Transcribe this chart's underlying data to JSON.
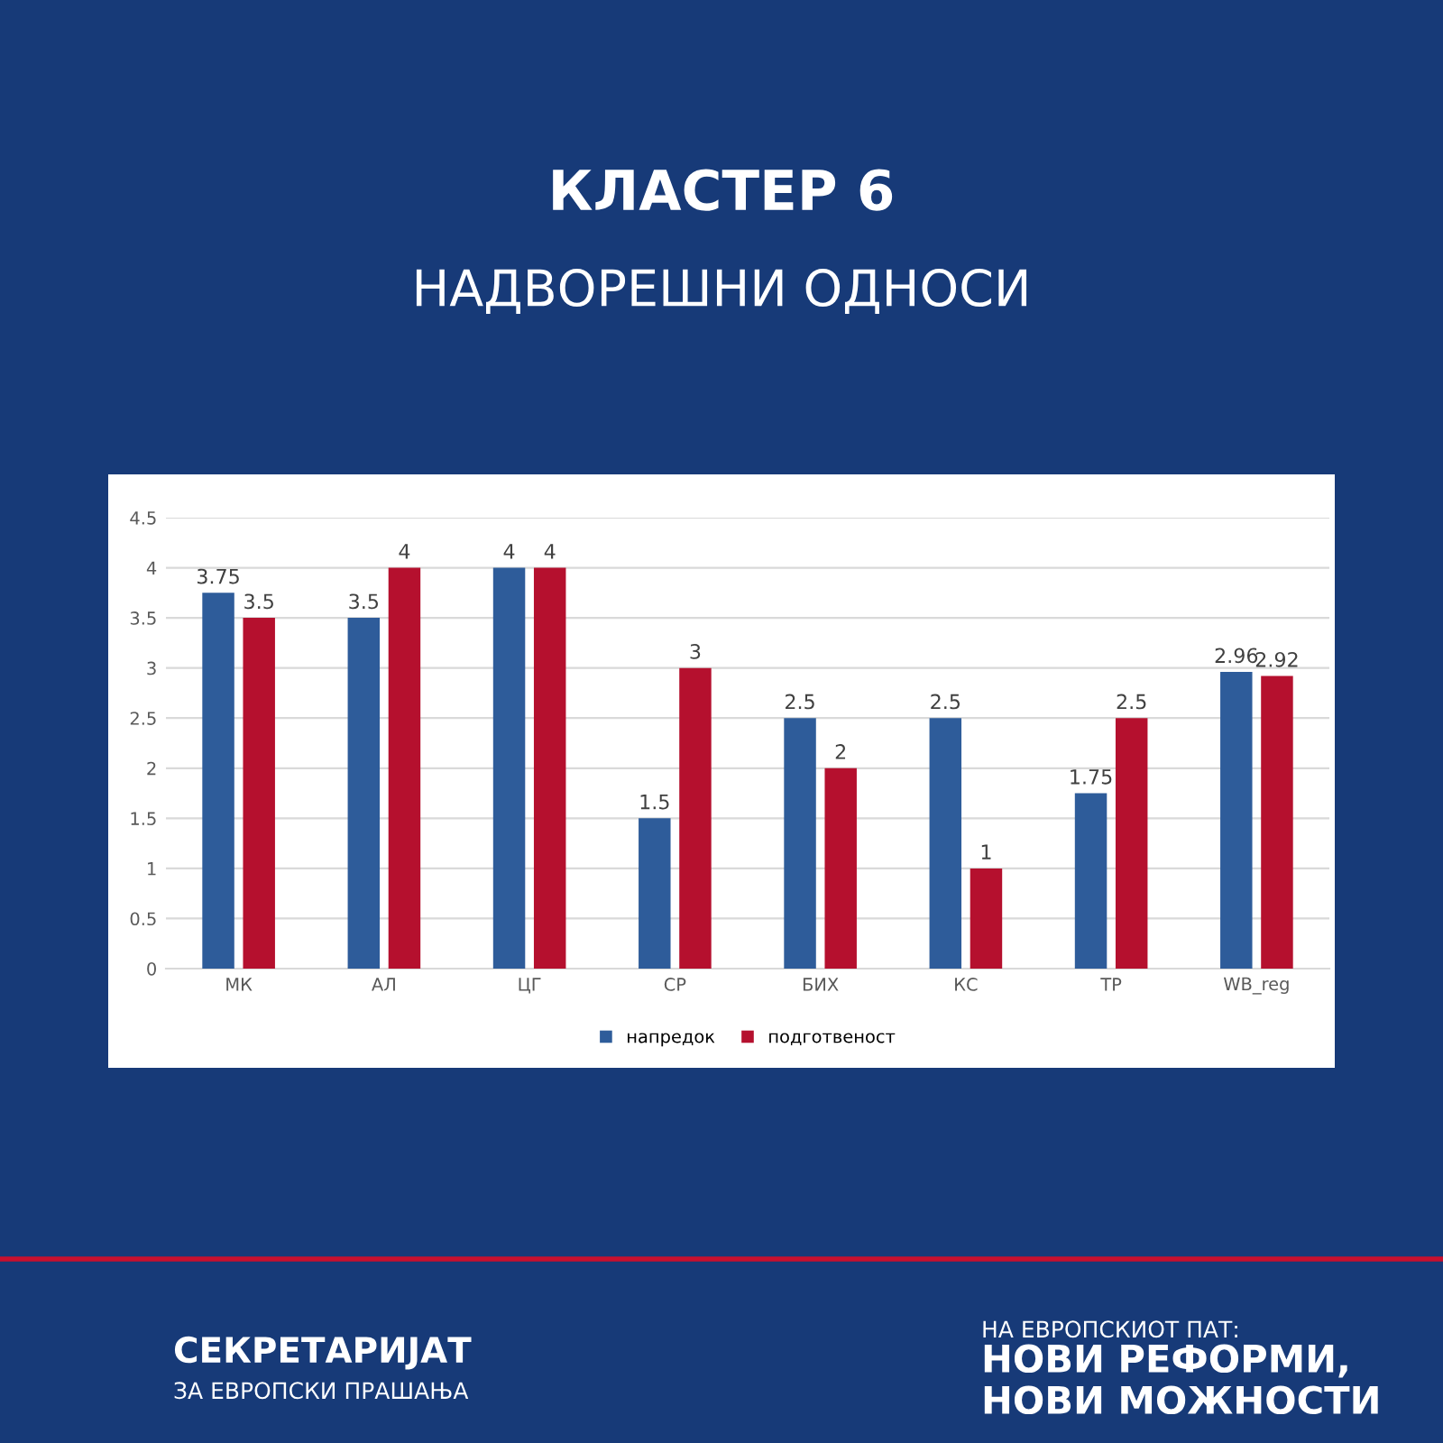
{
  "chart_data": {
    "type": "bar",
    "title": "КЛАСТЕР 6",
    "subtitle": "НАДВОРЕШНИ ОДНОСИ",
    "categories": [
      "МК",
      "АЛ",
      "ЦГ",
      "СР",
      "БИХ",
      "КС",
      "ТР",
      "WB_reg"
    ],
    "series": [
      {
        "name": "напредок",
        "color": "#2e5c9a",
        "values": [
          3.75,
          3.5,
          4,
          1.5,
          2.5,
          2.5,
          1.75,
          2.96
        ]
      },
      {
        "name": "подготвеност",
        "color": "#b5102e",
        "values": [
          3.5,
          4,
          4,
          3,
          2,
          1,
          2.5,
          2.92
        ]
      }
    ],
    "ylim": [
      0,
      4.5
    ],
    "yticks": [
      0,
      0.5,
      1,
      1.5,
      2,
      2.5,
      3,
      3.5,
      4,
      4.5
    ],
    "grid": "y",
    "legend": "bottom",
    "data_labels": true,
    "annotations": [
      "СЕКРЕТАРИЈАТ",
      "ЗА ЕВРОПСКИ ПРАШАЊА",
      "НА ЕВРОПСКИОТ ПАТ:",
      "НОВИ РЕФОРМИ,",
      "НОВИ МОЖНОСТИ"
    ]
  }
}
